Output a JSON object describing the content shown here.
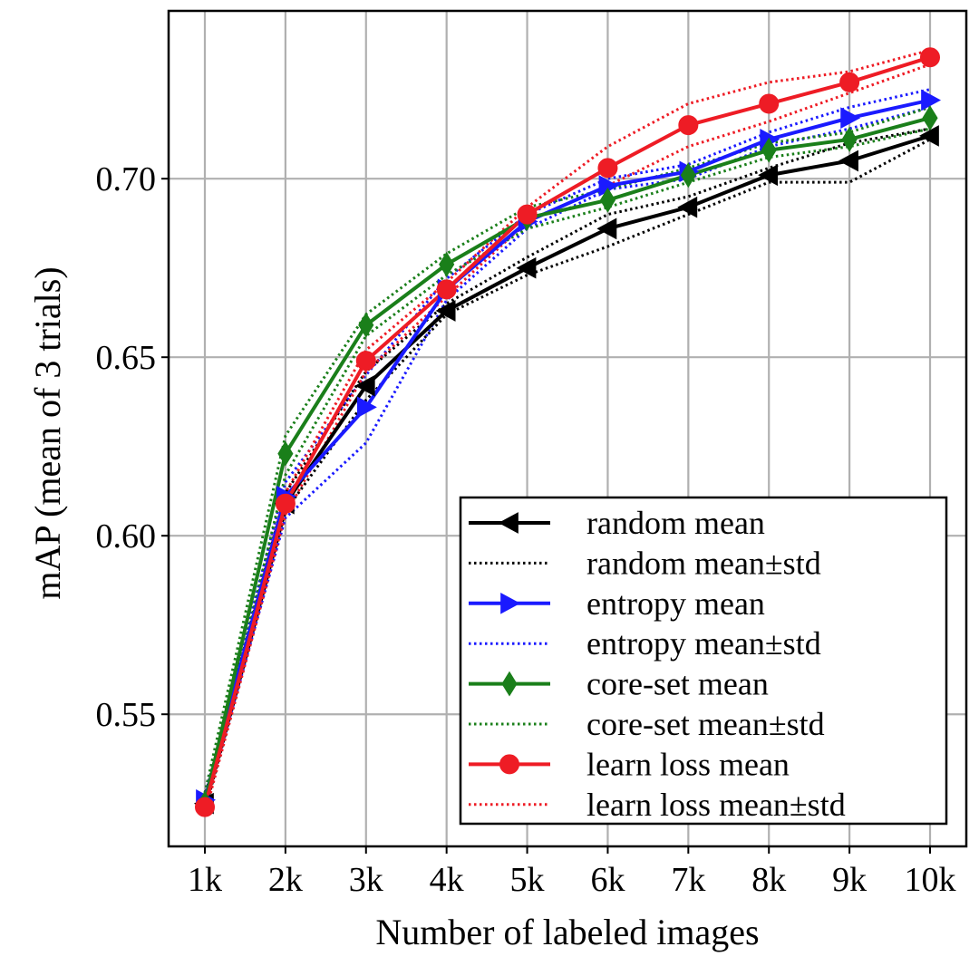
{
  "chart_data": {
    "type": "line",
    "title": "",
    "xlabel": "Number of labeled images",
    "ylabel": "mAP (mean of 3 trials)",
    "categories": [
      "1k",
      "2k",
      "3k",
      "4k",
      "5k",
      "6k",
      "7k",
      "8k",
      "9k",
      "10k"
    ],
    "x": [
      1,
      2,
      3,
      4,
      5,
      6,
      7,
      8,
      9,
      10
    ],
    "xlim": [
      0.55,
      10.45
    ],
    "ylim": [
      0.513,
      0.747
    ],
    "yticks": [
      0.55,
      0.6,
      0.65,
      0.7
    ],
    "ytick_labels": [
      "0.55",
      "0.60",
      "0.65",
      "0.70"
    ],
    "grid": true,
    "legend_position": "lower-right",
    "series": [
      {
        "name": "random mean",
        "std_name": "random mean±std",
        "color": "#000000",
        "marker": "triangle-left",
        "values": [
          0.525,
          0.609,
          0.642,
          0.663,
          0.675,
          0.686,
          0.692,
          0.701,
          0.705,
          0.712
        ],
        "upper": [
          0.527,
          0.612,
          0.646,
          0.665,
          0.678,
          0.69,
          0.695,
          0.703,
          0.71,
          0.714
        ],
        "lower": [
          0.523,
          0.607,
          0.638,
          0.662,
          0.673,
          0.681,
          0.69,
          0.699,
          0.699,
          0.711
        ]
      },
      {
        "name": "entropy mean",
        "std_name": "entropy mean±std",
        "color": "#1a1aff",
        "marker": "triangle-right",
        "values": [
          0.526,
          0.611,
          0.636,
          0.669,
          0.688,
          0.698,
          0.702,
          0.711,
          0.717,
          0.722
        ],
        "upper": [
          0.528,
          0.615,
          0.645,
          0.672,
          0.69,
          0.7,
          0.704,
          0.713,
          0.72,
          0.725
        ],
        "lower": [
          0.524,
          0.605,
          0.626,
          0.666,
          0.686,
          0.697,
          0.7,
          0.709,
          0.714,
          0.72
        ]
      },
      {
        "name": "core-set mean",
        "std_name": "core-set mean±std",
        "color": "#1a7f1a",
        "marker": "diamond",
        "values": [
          0.525,
          0.623,
          0.659,
          0.676,
          0.689,
          0.694,
          0.701,
          0.708,
          0.711,
          0.717
        ],
        "upper": [
          0.528,
          0.628,
          0.662,
          0.679,
          0.692,
          0.697,
          0.703,
          0.71,
          0.713,
          0.72
        ],
        "lower": [
          0.522,
          0.617,
          0.656,
          0.673,
          0.686,
          0.692,
          0.699,
          0.706,
          0.709,
          0.714
        ]
      },
      {
        "name": "learn loss mean",
        "std_name": "learn loss mean±std",
        "color": "#ee1c25",
        "marker": "circle",
        "values": [
          0.524,
          0.609,
          0.649,
          0.669,
          0.69,
          0.703,
          0.715,
          0.721,
          0.727,
          0.734
        ],
        "upper": [
          0.526,
          0.612,
          0.652,
          0.671,
          0.692,
          0.709,
          0.721,
          0.727,
          0.73,
          0.736
        ],
        "lower": [
          0.522,
          0.606,
          0.646,
          0.667,
          0.688,
          0.698,
          0.709,
          0.716,
          0.724,
          0.732
        ]
      }
    ]
  }
}
